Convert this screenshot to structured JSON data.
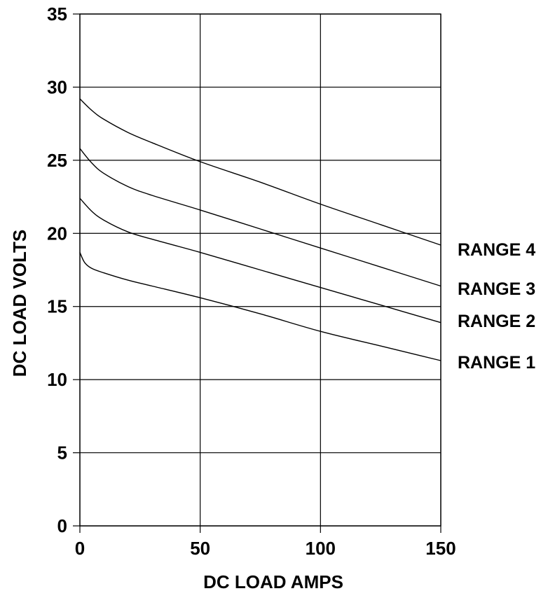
{
  "chart_data": {
    "type": "line",
    "title": "",
    "xlabel": "DC LOAD AMPS",
    "ylabel": "DC LOAD VOLTS",
    "xlim": [
      0,
      150
    ],
    "ylim": [
      0,
      35
    ],
    "xticks": [
      0,
      50,
      100,
      150
    ],
    "yticks": [
      0,
      5,
      10,
      15,
      20,
      25,
      30,
      35
    ],
    "grid": true,
    "legend": "right, labels at line ends",
    "series": [
      {
        "name": "RANGE 4",
        "x": [
          0,
          5,
          10,
          20,
          30,
          50,
          75,
          100,
          125,
          150
        ],
        "y": [
          29.2,
          28.4,
          27.8,
          26.9,
          26.2,
          24.9,
          23.5,
          22.0,
          20.6,
          19.2
        ]
      },
      {
        "name": "RANGE 3",
        "x": [
          0,
          5,
          10,
          20,
          30,
          50,
          75,
          100,
          125,
          150
        ],
        "y": [
          25.8,
          24.8,
          24.1,
          23.2,
          22.6,
          21.6,
          20.3,
          19.0,
          17.7,
          16.4
        ]
      },
      {
        "name": "RANGE 2",
        "x": [
          0,
          5,
          10,
          20,
          30,
          50,
          75,
          100,
          125,
          150
        ],
        "y": [
          22.4,
          21.5,
          20.9,
          20.1,
          19.6,
          18.7,
          17.5,
          16.3,
          15.1,
          13.9
        ]
      },
      {
        "name": "RANGE 1",
        "x": [
          0,
          2,
          5,
          10,
          20,
          30,
          50,
          75,
          100,
          125,
          150
        ],
        "y": [
          18.7,
          18.0,
          17.6,
          17.3,
          16.8,
          16.4,
          15.6,
          14.5,
          13.3,
          12.3,
          11.3
        ]
      }
    ]
  }
}
